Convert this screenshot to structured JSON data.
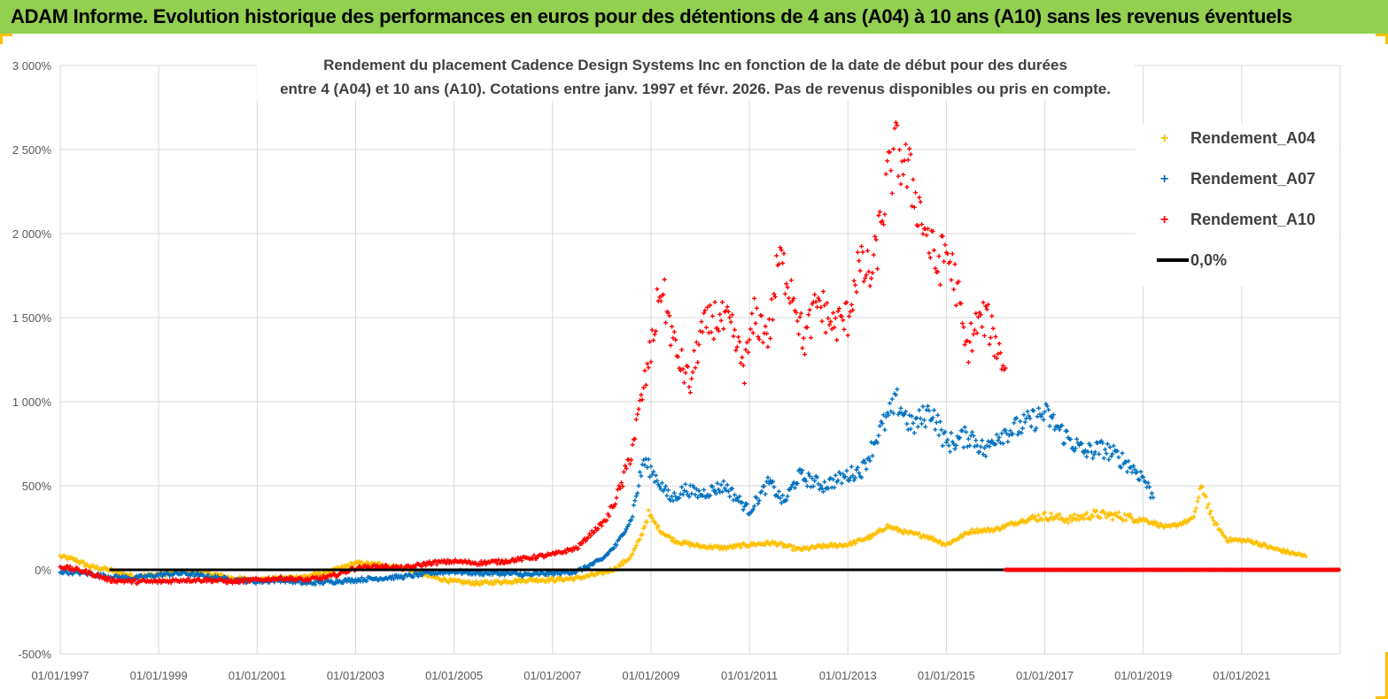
{
  "header": {
    "banner": "ADAM Informe. Evolution historique des performances en euros pour des détentions de 4 ans (A04) à 10 ans (A10) sans les revenus éventuels",
    "banner_color": "#92d050",
    "accent_color": "#ffc000"
  },
  "chart_data": {
    "type": "scatter",
    "title_lines": [
      "Rendement du placement Cadence Design Systems Inc en fonction de la date de début pour des durées",
      "entre 4 (A04) et 10 ans (A10).  Cotations entre janv. 1997 et févr. 2026.  Pas de revenus disponibles ou pris en compte."
    ],
    "xlabel": "",
    "ylabel": "",
    "ylim": [
      -500,
      3000
    ],
    "y_ticks": [
      -500,
      0,
      500,
      1000,
      1500,
      2000,
      2500,
      3000
    ],
    "y_tick_labels": [
      "-500%",
      "0%",
      "500%",
      "1 000%",
      "1 500%",
      "2 000%",
      "2 500%",
      "3 000%"
    ],
    "x_range": [
      1997.0,
      2023.0
    ],
    "x_ticks": [
      1997,
      1999,
      2001,
      2003,
      2005,
      2007,
      2009,
      2011,
      2013,
      2015,
      2017,
      2019,
      2021
    ],
    "x_tick_labels": [
      "01/01/1997",
      "01/01/1999",
      "01/01/2001",
      "01/01/2003",
      "01/01/2005",
      "01/01/2007",
      "01/01/2009",
      "01/01/2011",
      "01/01/2013",
      "01/01/2015",
      "01/01/2017",
      "01/01/2019",
      "01/01/2021"
    ],
    "grid": true,
    "legend_position": "right",
    "series": [
      {
        "name": "Rendement_A04",
        "color": "#ffc000",
        "marker": "+",
        "points": [
          [
            1997.0,
            80
          ],
          [
            1997.3,
            60
          ],
          [
            1997.6,
            20
          ],
          [
            1998.0,
            0
          ],
          [
            1998.5,
            -40
          ],
          [
            1999.0,
            -30
          ],
          [
            1999.5,
            -10
          ],
          [
            2000.0,
            -20
          ],
          [
            2000.5,
            -50
          ],
          [
            2001.0,
            -60
          ],
          [
            2001.5,
            -50
          ],
          [
            2002.0,
            -40
          ],
          [
            2002.5,
            -10
          ],
          [
            2003.0,
            40
          ],
          [
            2003.5,
            30
          ],
          [
            2004.0,
            10
          ],
          [
            2004.5,
            -40
          ],
          [
            2005.0,
            -70
          ],
          [
            2005.5,
            -80
          ],
          [
            2006.0,
            -70
          ],
          [
            2006.5,
            -60
          ],
          [
            2007.0,
            -60
          ],
          [
            2007.5,
            -50
          ],
          [
            2008.0,
            -20
          ],
          [
            2008.3,
            10
          ],
          [
            2008.6,
            80
          ],
          [
            2008.8,
            200
          ],
          [
            2008.95,
            330
          ],
          [
            2009.2,
            230
          ],
          [
            2009.5,
            170
          ],
          [
            2010.0,
            140
          ],
          [
            2010.5,
            130
          ],
          [
            2011.0,
            150
          ],
          [
            2011.5,
            160
          ],
          [
            2012.0,
            120
          ],
          [
            2012.5,
            140
          ],
          [
            2013.0,
            150
          ],
          [
            2013.5,
            200
          ],
          [
            2013.8,
            260
          ],
          [
            2014.2,
            220
          ],
          [
            2014.6,
            200
          ],
          [
            2015.0,
            150
          ],
          [
            2015.5,
            230
          ],
          [
            2016.0,
            240
          ],
          [
            2016.5,
            290
          ],
          [
            2017.0,
            320
          ],
          [
            2017.5,
            300
          ],
          [
            2018.0,
            330
          ],
          [
            2018.5,
            320
          ],
          [
            2019.0,
            300
          ],
          [
            2019.5,
            250
          ],
          [
            2020.0,
            300
          ],
          [
            2020.2,
            500
          ],
          [
            2020.4,
            300
          ],
          [
            2020.7,
            180
          ],
          [
            2021.2,
            170
          ],
          [
            2021.6,
            130
          ],
          [
            2022.0,
            100
          ],
          [
            2022.3,
            80
          ]
        ]
      },
      {
        "name": "Rendement_A07",
        "color": "#0070c0",
        "marker": "+",
        "points": [
          [
            1997.0,
            -10
          ],
          [
            1997.5,
            -20
          ],
          [
            1998.0,
            -40
          ],
          [
            1998.5,
            -50
          ],
          [
            1999.0,
            -30
          ],
          [
            1999.5,
            -20
          ],
          [
            2000.0,
            -40
          ],
          [
            2000.5,
            -60
          ],
          [
            2001.0,
            -70
          ],
          [
            2001.5,
            -60
          ],
          [
            2002.0,
            -80
          ],
          [
            2002.5,
            -70
          ],
          [
            2003.0,
            -60
          ],
          [
            2003.5,
            -50
          ],
          [
            2004.0,
            -40
          ],
          [
            2004.5,
            -20
          ],
          [
            2005.0,
            -10
          ],
          [
            2005.5,
            -20
          ],
          [
            2006.0,
            -20
          ],
          [
            2006.5,
            -30
          ],
          [
            2007.0,
            -20
          ],
          [
            2007.5,
            -10
          ],
          [
            2008.0,
            60
          ],
          [
            2008.3,
            150
          ],
          [
            2008.6,
            300
          ],
          [
            2008.85,
            650
          ],
          [
            2009.1,
            550
          ],
          [
            2009.4,
            420
          ],
          [
            2009.7,
            480
          ],
          [
            2010.0,
            450
          ],
          [
            2010.5,
            500
          ],
          [
            2011.0,
            350
          ],
          [
            2011.4,
            520
          ],
          [
            2011.7,
            400
          ],
          [
            2012.0,
            560
          ],
          [
            2012.5,
            500
          ],
          [
            2012.9,
            550
          ],
          [
            2013.3,
            600
          ],
          [
            2013.6,
            800
          ],
          [
            2014.0,
            1000
          ],
          [
            2014.3,
            850
          ],
          [
            2014.7,
            950
          ],
          [
            2015.0,
            750
          ],
          [
            2015.5,
            800
          ],
          [
            2015.8,
            700
          ],
          [
            2016.0,
            800
          ],
          [
            2016.5,
            850
          ],
          [
            2017.0,
            930
          ],
          [
            2017.4,
            800
          ],
          [
            2017.8,
            700
          ],
          [
            2018.2,
            720
          ],
          [
            2018.6,
            650
          ],
          [
            2019.0,
            550
          ],
          [
            2019.2,
            430
          ]
        ]
      },
      {
        "name": "Rendement_A10",
        "color": "#ff0000",
        "marker": "+",
        "points": [
          [
            1997.0,
            20
          ],
          [
            1997.5,
            -10
          ],
          [
            1998.0,
            -60
          ],
          [
            1998.5,
            -70
          ],
          [
            1999.0,
            -70
          ],
          [
            1999.5,
            -60
          ],
          [
            2000.0,
            -60
          ],
          [
            2000.5,
            -70
          ],
          [
            2001.0,
            -60
          ],
          [
            2001.5,
            -50
          ],
          [
            2002.0,
            -60
          ],
          [
            2002.5,
            -40
          ],
          [
            2003.0,
            10
          ],
          [
            2003.5,
            20
          ],
          [
            2004.0,
            10
          ],
          [
            2004.5,
            40
          ],
          [
            2005.0,
            50
          ],
          [
            2005.5,
            40
          ],
          [
            2006.0,
            50
          ],
          [
            2006.5,
            70
          ],
          [
            2007.0,
            90
          ],
          [
            2007.5,
            130
          ],
          [
            2007.8,
            220
          ],
          [
            2008.1,
            300
          ],
          [
            2008.4,
            500
          ],
          [
            2008.6,
            700
          ],
          [
            2008.8,
            1000
          ],
          [
            2009.0,
            1300
          ],
          [
            2009.2,
            1700
          ],
          [
            2009.5,
            1300
          ],
          [
            2009.8,
            1100
          ],
          [
            2010.0,
            1400
          ],
          [
            2010.3,
            1500
          ],
          [
            2010.6,
            1450
          ],
          [
            2010.9,
            1200
          ],
          [
            2011.1,
            1500
          ],
          [
            2011.4,
            1400
          ],
          [
            2011.6,
            1850
          ],
          [
            2011.9,
            1650
          ],
          [
            2012.1,
            1350
          ],
          [
            2012.4,
            1600
          ],
          [
            2012.7,
            1450
          ],
          [
            2013.0,
            1500
          ],
          [
            2013.2,
            1800
          ],
          [
            2013.5,
            1750
          ],
          [
            2013.8,
            2300
          ],
          [
            2014.0,
            2500
          ],
          [
            2014.3,
            2300
          ],
          [
            2014.5,
            2100
          ],
          [
            2014.8,
            1800
          ],
          [
            2015.0,
            1900
          ],
          [
            2015.2,
            1700
          ],
          [
            2015.4,
            1300
          ],
          [
            2015.6,
            1450
          ],
          [
            2015.8,
            1500
          ],
          [
            2016.0,
            1350
          ],
          [
            2016.2,
            1200
          ]
        ]
      },
      {
        "name": "0,0%",
        "color": "#000000",
        "marker": "line",
        "points": [
          [
            1998.0,
            0
          ],
          [
            2023.0,
            0
          ]
        ]
      }
    ],
    "zero_markers": {
      "name": "Rendement_A10",
      "color": "#ff0000",
      "from": 2016.2,
      "to": 2023.0,
      "value": 0
    }
  }
}
